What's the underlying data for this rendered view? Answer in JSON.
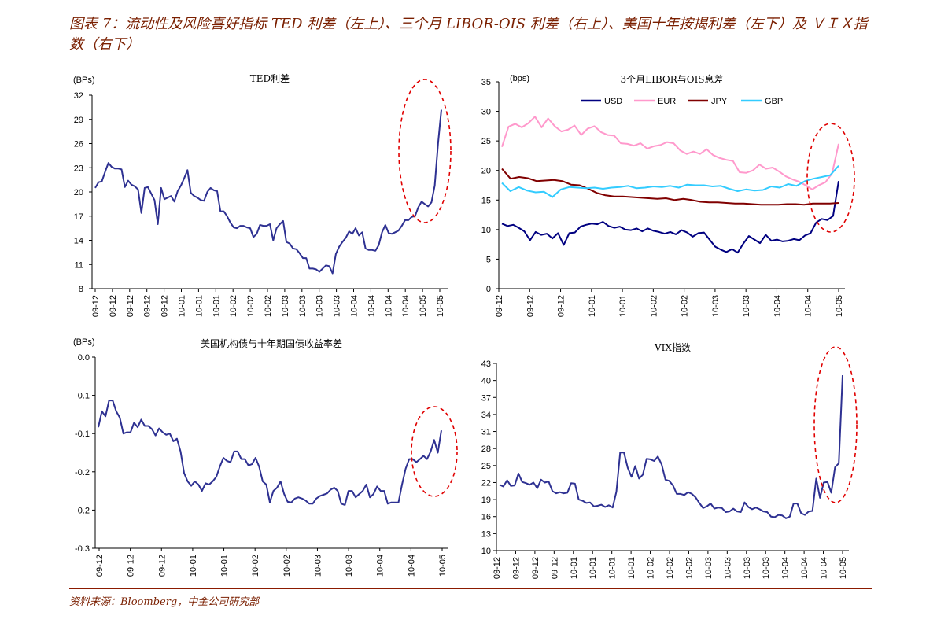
{
  "figure_title": "图表 7：流动性及风险喜好指标  TED 利差（左上）、三个月 LIBOR-OIS 利差（右上）、美国十年按揭利差（左下）及 ＶＩＸ指数（右下）",
  "source": "资料来源：Bloomberg，中金公司研究部",
  "chart_data": [
    {
      "type": "line",
      "title": "TED利差",
      "ylabel": "(BPs)",
      "ylim": [
        8,
        32
      ],
      "yticks": [
        8,
        11,
        14,
        17,
        20,
        23,
        26,
        29,
        32
      ],
      "xticks": [
        "09-12",
        "09-12",
        "09-12",
        "09-12",
        "09-12",
        "10-01",
        "10-01",
        "10-01",
        "10-02",
        "10-02",
        "10-02",
        "10-03",
        "10-03",
        "10-03",
        "10-03",
        "10-04",
        "10-04",
        "10-04",
        "10-04",
        "10-05",
        "10-05"
      ],
      "annotation": "red dashed ellipse around latest spike",
      "series": [
        {
          "color": "#2e3192",
          "values": [
            20.5,
            21.2,
            21.3,
            22.5,
            23.6,
            23.1,
            22.9,
            22.9,
            22.8,
            20.6,
            21.4,
            20.9,
            20.7,
            20.3,
            17.4,
            20.5,
            20.6,
            19.8,
            19.0,
            16.0,
            20.5,
            19.1,
            19.3,
            19.5,
            18.8,
            20.1,
            20.8,
            21.7,
            22.7,
            19.9,
            19.5,
            19.3,
            19.0,
            18.9,
            20.0,
            20.5,
            20.2,
            20.1,
            17.6,
            17.6,
            17.0,
            16.2,
            15.6,
            15.5,
            15.8,
            15.8,
            15.6,
            15.5,
            14.4,
            14.8,
            15.9,
            15.8,
            15.8,
            16.0,
            14.0,
            15.5,
            16.0,
            16.4,
            13.8,
            13.6,
            13.0,
            12.9,
            12.4,
            11.8,
            11.8,
            10.5,
            10.5,
            10.4,
            10.1,
            10.5,
            10.9,
            10.8,
            9.9,
            12.3,
            13.2,
            13.8,
            14.3,
            15.1,
            14.8,
            15.5,
            14.6,
            15.0,
            13.0,
            12.8,
            12.8,
            12.7,
            13.4,
            15.0,
            15.9,
            14.9,
            14.8,
            15.0,
            15.2,
            15.8,
            16.5,
            16.5,
            16.9,
            17.0,
            18.1,
            18.8,
            18.5,
            18.2,
            18.7,
            20.8,
            26.0,
            30.2
          ]
        }
      ]
    },
    {
      "type": "line",
      "title": "3个月LIBOR与OIS息差",
      "ylabel": "(bps)",
      "ylim": [
        0,
        35
      ],
      "yticks": [
        0,
        5,
        10,
        15,
        20,
        25,
        30,
        35
      ],
      "xticks": [
        "09-12",
        "09-12",
        "09-12",
        "10-01",
        "10-01",
        "10-02",
        "10-02",
        "10-03",
        "10-03",
        "10-04",
        "10-04",
        "10-05"
      ],
      "legend": "top-center",
      "annotation": "red dashed ellipse around latest spike",
      "series": [
        {
          "name": "USD",
          "color": "#000080",
          "values": [
            11.0,
            10.6,
            10.8,
            10.3,
            9.7,
            8.2,
            9.6,
            9.1,
            9.3,
            8.5,
            9.4,
            7.4,
            9.4,
            9.5,
            10.5,
            10.8,
            11.0,
            10.9,
            11.3,
            10.6,
            10.3,
            10.5,
            10.0,
            9.9,
            10.2,
            9.7,
            10.2,
            9.8,
            9.6,
            9.3,
            9.6,
            9.2,
            9.9,
            9.5,
            8.8,
            9.4,
            9.5,
            8.3,
            7.1,
            6.6,
            6.2,
            6.7,
            6.1,
            7.6,
            8.9,
            8.3,
            7.7,
            9.1,
            8.1,
            8.3,
            8.0,
            8.1,
            8.4,
            8.2,
            9.0,
            9.4,
            11.2,
            11.8,
            11.6,
            12.3,
            18.2
          ]
        },
        {
          "name": "EUR",
          "color": "#ff99cc",
          "values": [
            24.0,
            27.4,
            27.9,
            27.3,
            28.0,
            29.1,
            27.3,
            28.8,
            27.5,
            26.6,
            26.9,
            27.6,
            26.0,
            27.1,
            27.5,
            26.5,
            26.0,
            25.9,
            24.6,
            24.5,
            24.2,
            24.6,
            23.7,
            24.1,
            24.3,
            24.8,
            24.6,
            23.4,
            22.8,
            23.2,
            22.8,
            23.6,
            22.6,
            22.1,
            21.8,
            21.6,
            19.7,
            19.6,
            20.0,
            21.0,
            20.3,
            20.5,
            19.8,
            19.0,
            18.5,
            18.1,
            17.5,
            16.8,
            17.5,
            18.0,
            19.5,
            24.5
          ]
        },
        {
          "name": "JPY",
          "color": "#800000",
          "values": [
            20.3,
            18.6,
            18.9,
            18.7,
            18.2,
            18.3,
            18.4,
            18.2,
            17.6,
            17.5,
            16.9,
            16.2,
            15.8,
            15.6,
            15.6,
            15.5,
            15.4,
            15.3,
            15.2,
            15.3,
            15.0,
            15.2,
            15.0,
            14.7,
            14.6,
            14.6,
            14.5,
            14.4,
            14.4,
            14.3,
            14.2,
            14.2,
            14.2,
            14.3,
            14.3,
            14.2,
            14.4,
            14.4,
            14.4,
            14.5
          ]
        },
        {
          "name": "GBP",
          "color": "#33ccff",
          "values": [
            17.9,
            16.5,
            17.2,
            16.6,
            16.3,
            16.4,
            15.5,
            16.8,
            17.2,
            17.1,
            17.0,
            17.1,
            16.9,
            17.1,
            17.2,
            17.4,
            17.0,
            17.1,
            17.3,
            17.2,
            17.4,
            17.1,
            17.6,
            17.5,
            17.5,
            17.3,
            17.4,
            16.9,
            16.5,
            16.8,
            16.6,
            16.7,
            17.3,
            17.1,
            17.7,
            17.4,
            18.2,
            18.6,
            18.9,
            19.2,
            20.8
          ]
        }
      ]
    },
    {
      "type": "line",
      "title": "美国机构债与十年期国债收益率差",
      "ylabel": "(BPs)",
      "ylim": [
        -0.3,
        0.0
      ],
      "yticks": [
        "0.0",
        "-0.1",
        "-0.1",
        "-0.2",
        "-0.2",
        "-0.3"
      ],
      "xticks": [
        "09-12",
        "09-12",
        "09-12",
        "10-01",
        "10-01",
        "10-02",
        "10-02",
        "10-03",
        "10-03",
        "10-04",
        "10-04",
        "10-05"
      ],
      "annotation": "red dashed ellipse around latest values",
      "series": [
        {
          "color": "#2e3192",
          "values": [
            -0.11,
            -0.085,
            -0.093,
            -0.068,
            -0.068,
            -0.085,
            -0.095,
            -0.12,
            -0.118,
            -0.118,
            -0.103,
            -0.11,
            -0.098,
            -0.108,
            -0.108,
            -0.113,
            -0.123,
            -0.112,
            -0.118,
            -0.122,
            -0.12,
            -0.132,
            -0.128,
            -0.148,
            -0.182,
            -0.195,
            -0.202,
            -0.195,
            -0.2,
            -0.21,
            -0.198,
            -0.2,
            -0.195,
            -0.188,
            -0.172,
            -0.158,
            -0.163,
            -0.165,
            -0.148,
            -0.148,
            -0.16,
            -0.16,
            -0.17,
            -0.168,
            -0.158,
            -0.172,
            -0.195,
            -0.2,
            -0.228,
            -0.21,
            -0.205,
            -0.195,
            -0.215,
            -0.227,
            -0.228,
            -0.222,
            -0.22,
            -0.222,
            -0.225,
            -0.23,
            -0.23,
            -0.222,
            -0.218,
            -0.216,
            -0.214,
            -0.208,
            -0.205,
            -0.21,
            -0.23,
            -0.232,
            -0.21,
            -0.21,
            -0.22,
            -0.215,
            -0.21,
            -0.2,
            -0.22,
            -0.215,
            -0.203,
            -0.21,
            -0.21,
            -0.23,
            -0.228,
            -0.228,
            -0.228,
            -0.2,
            -0.175,
            -0.16,
            -0.16,
            -0.165,
            -0.16,
            -0.155,
            -0.16,
            -0.148,
            -0.13,
            -0.15,
            -0.115
          ]
        }
      ]
    },
    {
      "type": "line",
      "title": "VIX指数",
      "ylim": [
        10,
        43
      ],
      "yticks": [
        10,
        13,
        16,
        19,
        22,
        25,
        28,
        31,
        34,
        37,
        40,
        43
      ],
      "xticks": [
        "09-12",
        "09-12",
        "09-12",
        "09-12",
        "10-01",
        "10-01",
        "10-01",
        "10-01",
        "10-02",
        "10-02",
        "10-02",
        "10-03",
        "10-03",
        "10-03",
        "10-03",
        "10-04",
        "10-04",
        "10-04",
        "10-05"
      ],
      "annotation": "red dashed ellipse around latest spike",
      "series": [
        {
          "color": "#2e3192",
          "values": [
            21.6,
            21.3,
            22.4,
            21.4,
            21.5,
            23.6,
            22.1,
            21.9,
            21.6,
            22.0,
            21.0,
            22.5,
            22.0,
            22.2,
            20.5,
            20.1,
            20.3,
            20.1,
            20.2,
            21.9,
            21.8,
            19.0,
            18.8,
            18.4,
            18.5,
            17.8,
            17.9,
            18.1,
            17.7,
            18.0,
            17.6,
            20.4,
            27.3,
            27.3,
            24.6,
            23.0,
            24.9,
            22.7,
            23.4,
            26.2,
            26.1,
            25.8,
            26.6,
            25.2,
            22.5,
            22.3,
            21.5,
            20.0,
            20.0,
            19.8,
            20.3,
            20.0,
            19.4,
            18.4,
            17.5,
            17.8,
            18.3,
            17.4,
            17.6,
            17.5,
            16.8,
            16.9,
            17.4,
            16.9,
            16.8,
            18.5,
            17.7,
            17.3,
            17.6,
            17.3,
            16.9,
            16.8,
            16.0,
            15.9,
            16.3,
            16.2,
            15.7,
            16.0,
            18.3,
            18.3,
            16.6,
            16.3,
            16.9,
            17.0,
            22.7,
            19.3,
            22.0,
            22.1,
            20.2,
            24.7,
            25.4,
            40.9
          ]
        }
      ]
    }
  ]
}
